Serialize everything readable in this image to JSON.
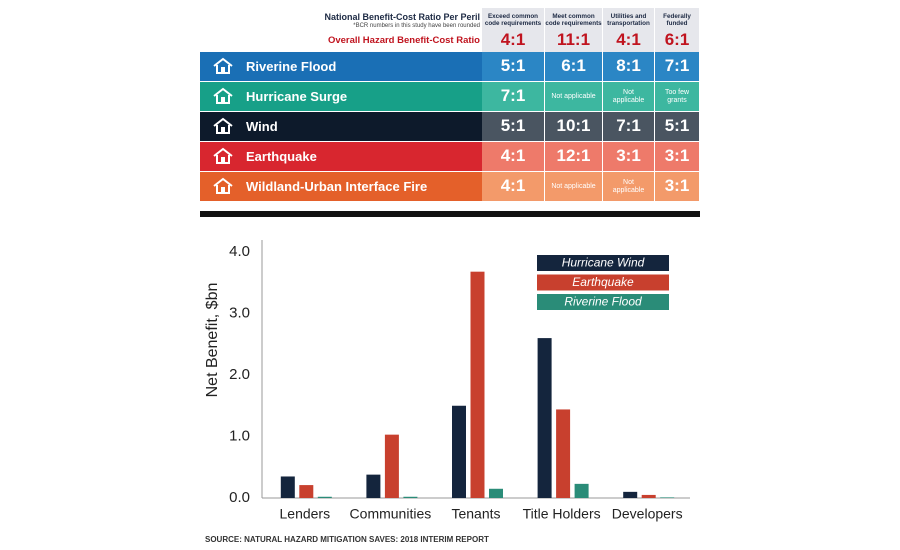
{
  "table": {
    "title": "National Benefit-Cost Ratio Per Peril",
    "note": "*BCR numbers in this study have been rounded",
    "overall_label": "Overall Hazard Benefit-Cost Ratio",
    "columns": [
      "Exceed common code requirements",
      "Meet common code requirements",
      "Utilities and transportation",
      "Federally funded"
    ],
    "overall": [
      "4:1",
      "11:1",
      "4:1",
      "6:1"
    ],
    "rows": [
      {
        "peril": "Riverine Flood",
        "values": [
          "5:1",
          "6:1",
          "8:1",
          "7:1"
        ]
      },
      {
        "peril": "Hurricane Surge",
        "values": [
          "7:1",
          "Not applicable",
          "Not applicable",
          "Too few grants"
        ]
      },
      {
        "peril": "Wind",
        "values": [
          "5:1",
          "10:1",
          "7:1",
          "5:1"
        ]
      },
      {
        "peril": "Earthquake",
        "values": [
          "4:1",
          "12:1",
          "3:1",
          "3:1"
        ]
      },
      {
        "peril": "Wildland-Urban Interface Fire",
        "values": [
          "4:1",
          "Not applicable",
          "Not applicable",
          "3:1"
        ]
      }
    ]
  },
  "chart_data": {
    "type": "bar",
    "y_label": "Net Benefit, $bn",
    "categories": [
      "Lenders",
      "Communities",
      "Tenants",
      "Title Holders",
      "Developers"
    ],
    "series": [
      {
        "name": "Hurricane Wind",
        "color": "#14253d",
        "values": [
          0.35,
          0.38,
          1.5,
          2.6,
          0.1
        ]
      },
      {
        "name": "Earthquake",
        "color": "#c8402e",
        "values": [
          0.21,
          1.03,
          3.68,
          1.44,
          0.05
        ]
      },
      {
        "name": "Riverine Flood",
        "color": "#2a8c78",
        "values": [
          0.02,
          0.02,
          0.15,
          0.23,
          0.01
        ]
      }
    ],
    "ylim": [
      0,
      4
    ],
    "yticks": [
      {
        "value": 0,
        "label": "0.0"
      },
      {
        "value": 1,
        "label": "1.0"
      },
      {
        "value": 2,
        "label": "2.0"
      },
      {
        "value": 3,
        "label": "3.0"
      },
      {
        "value": 4,
        "label": "4.0"
      }
    ],
    "legend": "upper right",
    "grid": false
  },
  "source": "SOURCE: NATURAL HAZARD MITIGATION SAVES: 2018 INTERIM REPORT"
}
